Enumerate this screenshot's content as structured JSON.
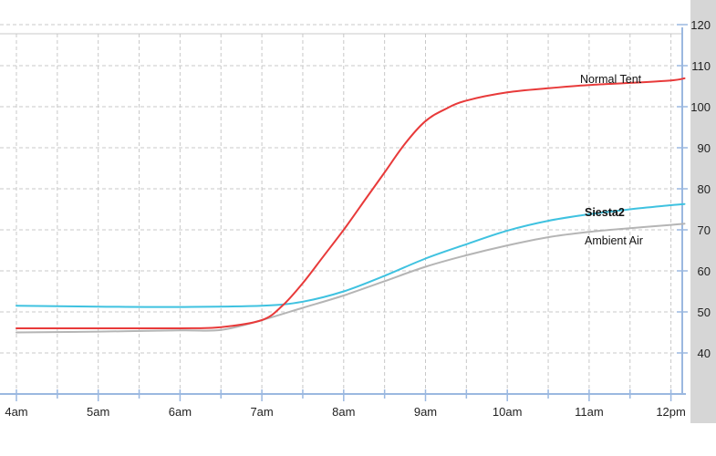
{
  "chart_data": {
    "type": "line",
    "title": "",
    "xlabel": "",
    "ylabel": "",
    "x_tick_labels": [
      "4am",
      "5am",
      "6am",
      "7am",
      "8am",
      "9am",
      "10am",
      "11am",
      "12pm"
    ],
    "y_ticks": [
      40,
      50,
      60,
      70,
      80,
      90,
      100,
      110,
      120
    ],
    "ylim": [
      30,
      120
    ],
    "grid": true,
    "colors": {
      "grid": "#c8c8c8",
      "axis": "#9bb8e0",
      "right_panel": "#d6d6d6"
    },
    "series": [
      {
        "name": "Normal Tent",
        "color": "#e83a3a",
        "label_bold": false,
        "points": [
          [
            "4am",
            46
          ],
          [
            "5am",
            46
          ],
          [
            "6am",
            46
          ],
          [
            "6:30am",
            46.3
          ],
          [
            "7am",
            48
          ],
          [
            "7:15am",
            51.5
          ],
          [
            "7:30am",
            57
          ],
          [
            "7:45am",
            63.5
          ],
          [
            "8am",
            70
          ],
          [
            "8:15am",
            77
          ],
          [
            "8:30am",
            84
          ],
          [
            "8:45am",
            91
          ],
          [
            "9am",
            96.5
          ],
          [
            "9:15am",
            99.5
          ],
          [
            "9:30am",
            101.5
          ],
          [
            "10am",
            103.5
          ],
          [
            "10:30am",
            104.5
          ],
          [
            "11am",
            105.3
          ],
          [
            "11:30am",
            105.8
          ],
          [
            "12pm",
            106.4
          ],
          [
            "12:10pm",
            106.9
          ]
        ]
      },
      {
        "name": "Siesta2",
        "color": "#3fc2e0",
        "label_bold": true,
        "points": [
          [
            "4am",
            51.5
          ],
          [
            "5am",
            51.3
          ],
          [
            "6am",
            51.2
          ],
          [
            "7am",
            51.5
          ],
          [
            "7:30am",
            52.5
          ],
          [
            "8am",
            55
          ],
          [
            "8:30am",
            58.8
          ],
          [
            "9am",
            63
          ],
          [
            "9:30am",
            66.5
          ],
          [
            "10am",
            69.8
          ],
          [
            "10:30am",
            72.2
          ],
          [
            "11am",
            73.8
          ],
          [
            "11:30am",
            75
          ],
          [
            "12pm",
            76
          ],
          [
            "12:10pm",
            76.3
          ]
        ]
      },
      {
        "name": "Ambient Air",
        "color": "#b5b5b5",
        "label_bold": false,
        "points": [
          [
            "4am",
            45
          ],
          [
            "5am",
            45.2
          ],
          [
            "6am",
            45.5
          ],
          [
            "6:30am",
            45.6
          ],
          [
            "7am",
            48
          ],
          [
            "7:30am",
            51
          ],
          [
            "8am",
            54
          ],
          [
            "8:30am",
            57.5
          ],
          [
            "9am",
            61
          ],
          [
            "9:30am",
            63.8
          ],
          [
            "10am",
            66.2
          ],
          [
            "10:30am",
            68.2
          ],
          [
            "11am",
            69.5
          ],
          [
            "11:30am",
            70.4
          ],
          [
            "12pm",
            71.2
          ],
          [
            "12:10pm",
            71.5
          ]
        ]
      }
    ]
  }
}
